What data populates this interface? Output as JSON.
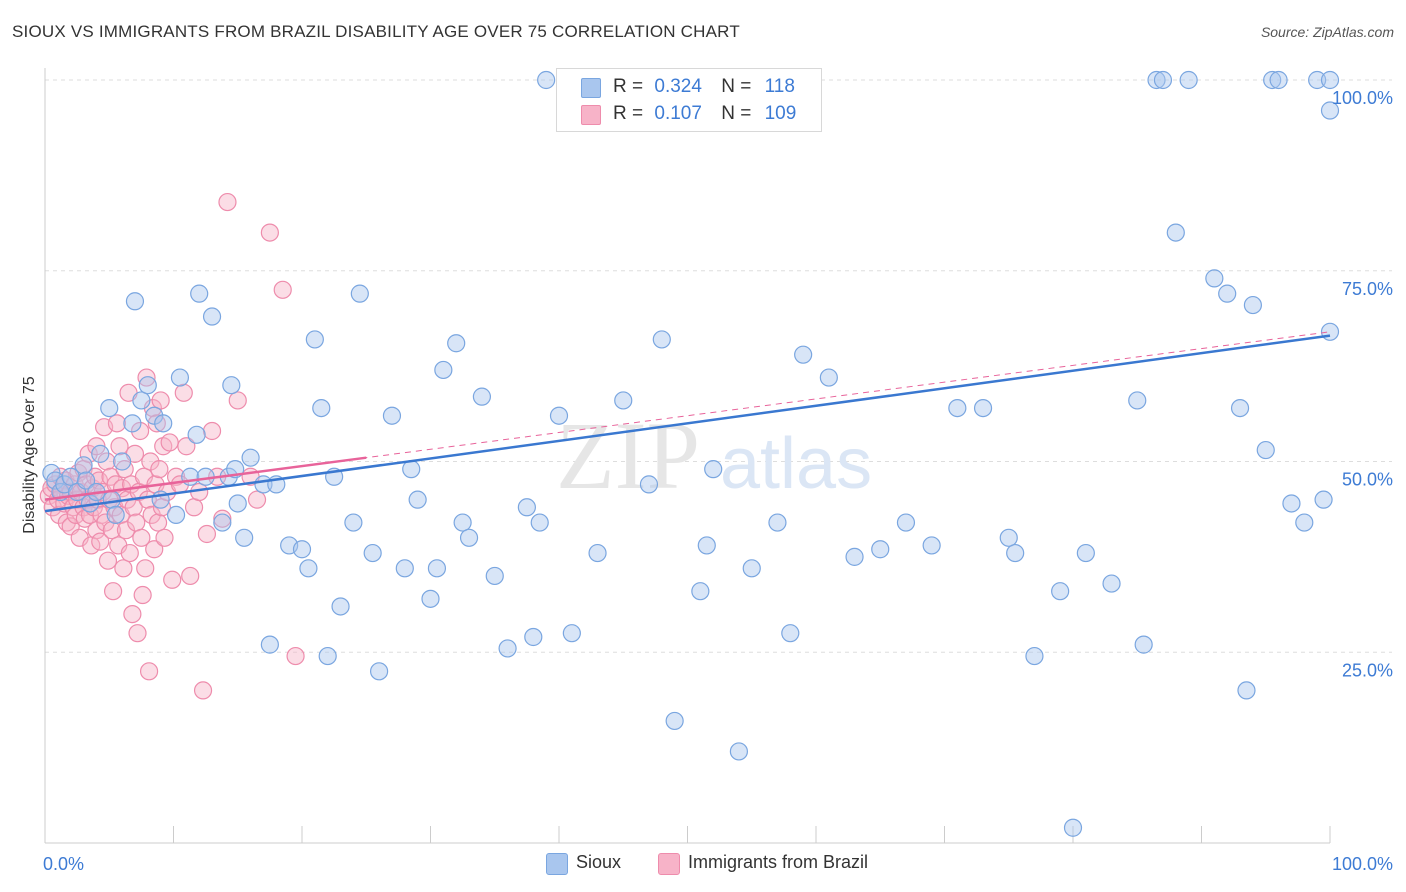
{
  "title": "SIOUX VS IMMIGRANTS FROM BRAZIL DISABILITY AGE OVER 75 CORRELATION CHART",
  "source": "Source: ZipAtlas.com",
  "watermark": {
    "zip": "ZIP",
    "atlas": "atlas"
  },
  "legend": {
    "series1": {
      "r_label": "R =",
      "r_value": "0.324",
      "n_label": "N =",
      "n_value": "118"
    },
    "series2": {
      "r_label": "R =",
      "r_value": "0.107",
      "n_label": "N =",
      "n_value": "109"
    }
  },
  "bottom_legend": {
    "series1": "Sioux",
    "series2": "Immigrants from Brazil"
  },
  "colors": {
    "series1_fill": "#a9c6ee",
    "series1_stroke": "#7aa6e0",
    "series1_line": "#3a78d0",
    "series2_fill": "#f7b3c8",
    "series2_stroke": "#ee8cac",
    "series2_line": "#e8639a",
    "axis_label": "#3d7bd4",
    "grid": "#dddddd"
  },
  "chart_data": {
    "type": "scatter",
    "title": "SIOUX VS IMMIGRANTS FROM BRAZIL DISABILITY AGE OVER 75 CORRELATION CHART",
    "xlabel": "",
    "ylabel": "Disability Age Over 75",
    "xlim": [
      0,
      100
    ],
    "ylim": [
      0,
      100
    ],
    "x_tick_labels": [
      "0.0%",
      "100.0%"
    ],
    "y_tick_labels": [
      "25.0%",
      "50.0%",
      "75.0%",
      "100.0%"
    ],
    "y_ticks": [
      25,
      50,
      75,
      100
    ],
    "grid": true,
    "legend_position": "top-center",
    "series": [
      {
        "name": "Sioux",
        "r": 0.324,
        "n": 118,
        "trend": {
          "x": [
            0,
            100
          ],
          "y": [
            43.5,
            66.5
          ]
        },
        "points": [
          [
            0.5,
            48.5
          ],
          [
            0.8,
            47.5
          ],
          [
            1.2,
            46
          ],
          [
            1.5,
            47
          ],
          [
            2,
            48
          ],
          [
            2.5,
            46
          ],
          [
            3,
            49.5
          ],
          [
            3.2,
            47.5
          ],
          [
            3.5,
            44.5
          ],
          [
            4,
            46
          ],
          [
            4.3,
            51
          ],
          [
            5,
            57
          ],
          [
            5.2,
            45
          ],
          [
            5.5,
            43
          ],
          [
            6,
            50
          ],
          [
            6.8,
            55
          ],
          [
            7,
            71
          ],
          [
            7.5,
            58
          ],
          [
            8,
            60
          ],
          [
            8.5,
            56
          ],
          [
            9,
            45
          ],
          [
            9.2,
            55
          ],
          [
            10.2,
            43
          ],
          [
            10.5,
            61
          ],
          [
            11.3,
            48
          ],
          [
            11.8,
            53.5
          ],
          [
            12,
            72
          ],
          [
            12.5,
            48
          ],
          [
            13,
            69
          ],
          [
            13.8,
            42
          ],
          [
            14.3,
            48
          ],
          [
            14.5,
            60
          ],
          [
            14.8,
            49
          ],
          [
            15,
            44.5
          ],
          [
            15.5,
            40
          ],
          [
            16,
            50.5
          ],
          [
            17,
            47
          ],
          [
            17.5,
            26
          ],
          [
            18,
            47
          ],
          [
            19,
            39
          ],
          [
            20,
            38.5
          ],
          [
            20.5,
            36
          ],
          [
            21,
            66
          ],
          [
            21.5,
            57
          ],
          [
            22,
            24.5
          ],
          [
            22.5,
            48
          ],
          [
            23,
            31
          ],
          [
            24,
            42
          ],
          [
            24.5,
            72
          ],
          [
            25.5,
            38
          ],
          [
            26,
            22.5
          ],
          [
            27,
            56
          ],
          [
            28,
            36
          ],
          [
            28.5,
            49
          ],
          [
            29,
            45
          ],
          [
            30,
            32
          ],
          [
            30.5,
            36
          ],
          [
            31,
            62
          ],
          [
            32,
            65.5
          ],
          [
            32.5,
            42
          ],
          [
            33,
            40
          ],
          [
            34,
            58.5
          ],
          [
            35,
            35
          ],
          [
            36,
            25.5
          ],
          [
            37.5,
            44
          ],
          [
            38,
            27
          ],
          [
            38.5,
            42
          ],
          [
            39,
            100
          ],
          [
            40,
            56
          ],
          [
            41,
            27.5
          ],
          [
            43,
            38
          ],
          [
            45,
            58
          ],
          [
            47,
            47
          ],
          [
            48,
            66
          ],
          [
            49,
            16
          ],
          [
            51,
            33
          ],
          [
            51.5,
            39
          ],
          [
            52,
            49
          ],
          [
            54,
            12
          ],
          [
            55,
            36
          ],
          [
            57,
            42
          ],
          [
            58,
            27.5
          ],
          [
            59,
            64
          ],
          [
            61,
            61
          ],
          [
            63,
            37.5
          ],
          [
            65,
            38.5
          ],
          [
            67,
            42
          ],
          [
            69,
            39
          ],
          [
            71,
            57
          ],
          [
            73,
            57
          ],
          [
            75,
            40
          ],
          [
            75.5,
            38
          ],
          [
            77,
            24.5
          ],
          [
            79,
            33
          ],
          [
            81,
            38
          ],
          [
            83,
            34
          ],
          [
            85,
            58
          ],
          [
            86.5,
            100
          ],
          [
            87,
            100
          ],
          [
            89,
            100
          ],
          [
            91,
            74
          ],
          [
            92,
            72
          ],
          [
            93,
            57
          ],
          [
            94,
            70.5
          ],
          [
            95,
            51.5
          ],
          [
            95.5,
            100
          ],
          [
            96,
            100
          ],
          [
            97,
            44.5
          ],
          [
            98,
            42
          ],
          [
            99,
            100
          ],
          [
            99.5,
            45
          ],
          [
            100,
            67
          ],
          [
            100,
            100
          ],
          [
            100,
            96
          ],
          [
            80,
            2
          ],
          [
            88,
            80
          ],
          [
            85.5,
            26
          ],
          [
            93.5,
            20
          ]
        ]
      },
      {
        "name": "Immigrants from Brazil",
        "r": 0.107,
        "n": 109,
        "trend": {
          "x": [
            0,
            25
          ],
          "y": [
            45,
            50.5
          ]
        },
        "points": [
          [
            0.3,
            45.5
          ],
          [
            0.5,
            46.5
          ],
          [
            0.6,
            44
          ],
          [
            0.8,
            47
          ],
          [
            1,
            45
          ],
          [
            1.1,
            43
          ],
          [
            1.2,
            48
          ],
          [
            1.3,
            46
          ],
          [
            1.5,
            44.5
          ],
          [
            1.6,
            47.5
          ],
          [
            1.7,
            42
          ],
          [
            1.8,
            45.5
          ],
          [
            2,
            46
          ],
          [
            2,
            41.5
          ],
          [
            2.2,
            44
          ],
          [
            2.3,
            47
          ],
          [
            2.4,
            43
          ],
          [
            2.5,
            45
          ],
          [
            2.6,
            48.5
          ],
          [
            2.7,
            40
          ],
          [
            2.8,
            46
          ],
          [
            3,
            44
          ],
          [
            3,
            49
          ],
          [
            3.1,
            42.5
          ],
          [
            3.2,
            47
          ],
          [
            3.3,
            45
          ],
          [
            3.4,
            51
          ],
          [
            3.5,
            43
          ],
          [
            3.6,
            39
          ],
          [
            3.7,
            46.5
          ],
          [
            3.8,
            44
          ],
          [
            3.9,
            48
          ],
          [
            4,
            41
          ],
          [
            4,
            52
          ],
          [
            4.1,
            45
          ],
          [
            4.2,
            47.5
          ],
          [
            4.3,
            39.5
          ],
          [
            4.4,
            43
          ],
          [
            4.5,
            46
          ],
          [
            4.6,
            54.5
          ],
          [
            4.7,
            42
          ],
          [
            4.8,
            50
          ],
          [
            4.9,
            37
          ],
          [
            5,
            45
          ],
          [
            5.1,
            48
          ],
          [
            5.2,
            41
          ],
          [
            5.3,
            33
          ],
          [
            5.4,
            44
          ],
          [
            5.5,
            47
          ],
          [
            5.6,
            55
          ],
          [
            5.7,
            39
          ],
          [
            5.8,
            52
          ],
          [
            5.9,
            43
          ],
          [
            6,
            46.5
          ],
          [
            6.1,
            36
          ],
          [
            6.2,
            49
          ],
          [
            6.3,
            41
          ],
          [
            6.4,
            45
          ],
          [
            6.5,
            59
          ],
          [
            6.6,
            38
          ],
          [
            6.7,
            47
          ],
          [
            6.8,
            30
          ],
          [
            6.9,
            44
          ],
          [
            7,
            51
          ],
          [
            7.1,
            42
          ],
          [
            7.2,
            27.5
          ],
          [
            7.3,
            46
          ],
          [
            7.4,
            54
          ],
          [
            7.5,
            40
          ],
          [
            7.6,
            32.5
          ],
          [
            7.7,
            48
          ],
          [
            7.8,
            36
          ],
          [
            7.9,
            61
          ],
          [
            8,
            45
          ],
          [
            8.1,
            22.5
          ],
          [
            8.2,
            50
          ],
          [
            8.3,
            43
          ],
          [
            8.4,
            57
          ],
          [
            8.5,
            38.5
          ],
          [
            8.6,
            47
          ],
          [
            8.7,
            55
          ],
          [
            8.8,
            42
          ],
          [
            8.9,
            49
          ],
          [
            9,
            58
          ],
          [
            9.1,
            44
          ],
          [
            9.2,
            52
          ],
          [
            9.3,
            40
          ],
          [
            9.5,
            46
          ],
          [
            9.7,
            52.5
          ],
          [
            9.9,
            34.5
          ],
          [
            10.2,
            48
          ],
          [
            10.5,
            47
          ],
          [
            10.8,
            59
          ],
          [
            11,
            52
          ],
          [
            11.3,
            35
          ],
          [
            11.6,
            44
          ],
          [
            12,
            46
          ],
          [
            12.3,
            20
          ],
          [
            12.6,
            40.5
          ],
          [
            13,
            54
          ],
          [
            13.4,
            48
          ],
          [
            13.8,
            42.5
          ],
          [
            14.2,
            84
          ],
          [
            15,
            58
          ],
          [
            16,
            48
          ],
          [
            16.5,
            45
          ],
          [
            17.5,
            80
          ],
          [
            18.5,
            72.5
          ],
          [
            19.5,
            24.5
          ]
        ]
      }
    ]
  }
}
